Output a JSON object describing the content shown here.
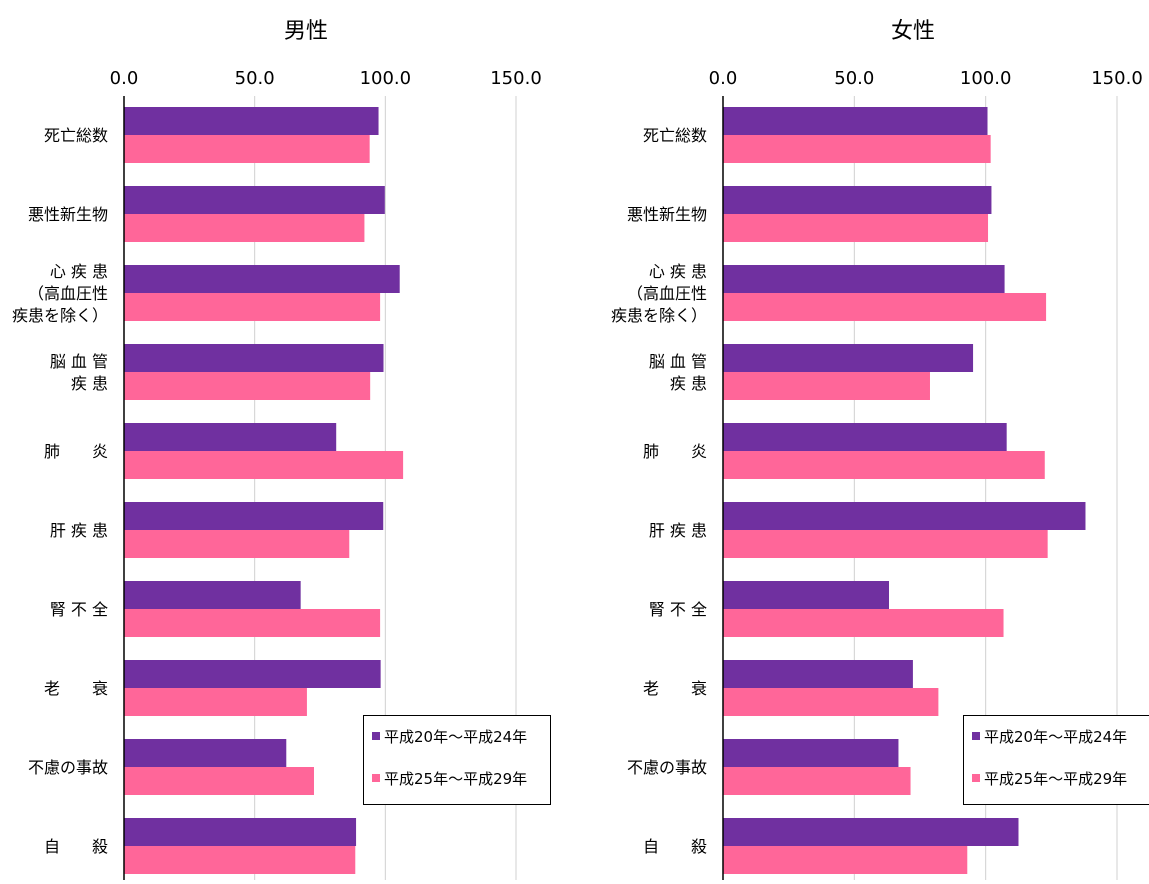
{
  "chart_data": [
    {
      "type": "bar",
      "orientation": "horizontal",
      "title": "男性",
      "categories": [
        [
          "死亡総数"
        ],
        [
          "悪性新生物"
        ],
        [
          "心 疾 患",
          "（高血圧性",
          "疾患を除く）"
        ],
        [
          "脳 血 管",
          "疾 患"
        ],
        [
          "肺　　炎"
        ],
        [
          "肝 疾 患"
        ],
        [
          "腎 不 全"
        ],
        [
          "老　　衰"
        ],
        [
          "不慮の事故"
        ],
        [
          "自　　殺"
        ]
      ],
      "series": [
        {
          "name": "平成20年～平成24年",
          "color": "#7030a0",
          "values": [
            97.4,
            99.8,
            105.5,
            99.3,
            81.2,
            99.2,
            67.6,
            98.2,
            62.1,
            88.8
          ]
        },
        {
          "name": "平成25年～平成29年",
          "color": "#ff6699",
          "values": [
            94.0,
            92.0,
            98.0,
            94.2,
            106.8,
            86.2,
            98.0,
            70.0,
            72.7,
            88.5
          ]
        }
      ],
      "xlim": [
        0,
        150
      ],
      "xticks": [
        "0.0",
        "50.0",
        "100.0",
        "150.0"
      ],
      "grid": true,
      "legend_position": "bottom-right"
    },
    {
      "type": "bar",
      "orientation": "horizontal",
      "title": "女性",
      "categories": [
        [
          "死亡総数"
        ],
        [
          "悪性新生物"
        ],
        [
          "心 疾 患",
          "（高血圧性",
          "疾患を除く）"
        ],
        [
          "脳 血 管",
          "疾 患"
        ],
        [
          "肺　　炎"
        ],
        [
          "肝 疾 患"
        ],
        [
          "腎 不 全"
        ],
        [
          "老　　衰"
        ],
        [
          "不慮の事故"
        ],
        [
          "自　　殺"
        ]
      ],
      "series": [
        {
          "name": "平成20年～平成24年",
          "color": "#7030a0",
          "values": [
            100.7,
            102.2,
            107.2,
            95.2,
            108.0,
            138.0,
            63.2,
            72.3,
            66.8,
            112.5
          ]
        },
        {
          "name": "平成25年～平成29年",
          "color": "#ff6699",
          "values": [
            101.9,
            100.9,
            123.0,
            78.8,
            122.5,
            123.6,
            106.8,
            82.0,
            71.4,
            93.0
          ]
        }
      ],
      "xlim": [
        0,
        150
      ],
      "xticks": [
        "0.0",
        "50.0",
        "100.0",
        "150.0"
      ],
      "grid": true,
      "legend_position": "bottom-right"
    }
  ]
}
